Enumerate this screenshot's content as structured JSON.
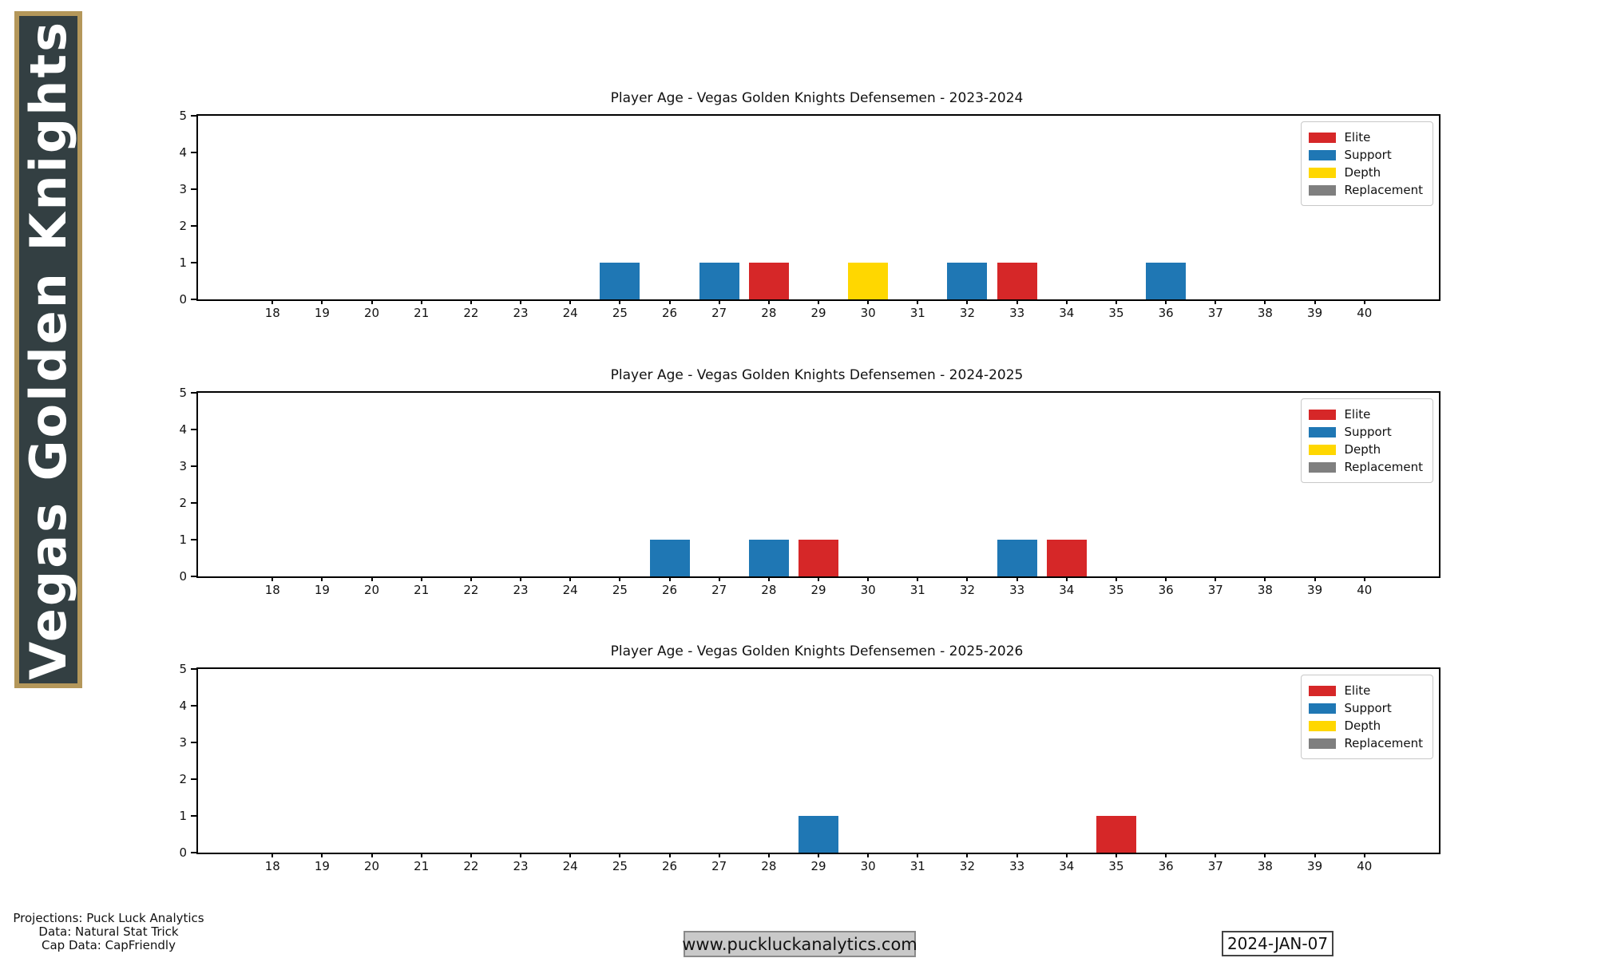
{
  "sidebar": {
    "title": "Vegas Golden Knights",
    "bg_color": "#333F42",
    "border_color": "#B4975A"
  },
  "tier_colors": {
    "Elite": "#d62728",
    "Support": "#1f77b4",
    "Depth": "#ffd700",
    "Replacement": "#7f7f7f"
  },
  "chart_data": [
    {
      "type": "bar",
      "title": "Player Age - Vegas Golden Knights Defensemen - 2023-2024",
      "xlabel": "",
      "ylabel": "",
      "xlim": [
        16.5,
        41.5
      ],
      "ylim": [
        0,
        5
      ],
      "x_ticks": [
        18,
        19,
        20,
        21,
        22,
        23,
        24,
        25,
        26,
        27,
        28,
        29,
        30,
        31,
        32,
        33,
        34,
        35,
        36,
        37,
        38,
        39,
        40
      ],
      "y_ticks": [
        0,
        1,
        2,
        3,
        4,
        5
      ],
      "grid": false,
      "legend_position": "upper right",
      "legend_entries": [
        "Elite",
        "Support",
        "Depth",
        "Replacement"
      ],
      "bars": [
        {
          "x": 25,
          "y": 1,
          "tier": "Support"
        },
        {
          "x": 27,
          "y": 1,
          "tier": "Support"
        },
        {
          "x": 28,
          "y": 1,
          "tier": "Elite"
        },
        {
          "x": 30,
          "y": 1,
          "tier": "Depth"
        },
        {
          "x": 32,
          "y": 1,
          "tier": "Support"
        },
        {
          "x": 33,
          "y": 1,
          "tier": "Elite"
        },
        {
          "x": 36,
          "y": 1,
          "tier": "Support"
        }
      ]
    },
    {
      "type": "bar",
      "title": "Player Age - Vegas Golden Knights Defensemen - 2024-2025",
      "xlabel": "",
      "ylabel": "",
      "xlim": [
        16.5,
        41.5
      ],
      "ylim": [
        0,
        5
      ],
      "x_ticks": [
        18,
        19,
        20,
        21,
        22,
        23,
        24,
        25,
        26,
        27,
        28,
        29,
        30,
        31,
        32,
        33,
        34,
        35,
        36,
        37,
        38,
        39,
        40
      ],
      "y_ticks": [
        0,
        1,
        2,
        3,
        4,
        5
      ],
      "grid": false,
      "legend_position": "upper right",
      "legend_entries": [
        "Elite",
        "Support",
        "Depth",
        "Replacement"
      ],
      "bars": [
        {
          "x": 26,
          "y": 1,
          "tier": "Support"
        },
        {
          "x": 28,
          "y": 1,
          "tier": "Support"
        },
        {
          "x": 29,
          "y": 1,
          "tier": "Elite"
        },
        {
          "x": 33,
          "y": 1,
          "tier": "Support"
        },
        {
          "x": 34,
          "y": 1,
          "tier": "Elite"
        }
      ]
    },
    {
      "type": "bar",
      "title": "Player Age - Vegas Golden Knights Defensemen - 2025-2026",
      "xlabel": "",
      "ylabel": "",
      "xlim": [
        16.5,
        41.5
      ],
      "ylim": [
        0,
        5
      ],
      "x_ticks": [
        18,
        19,
        20,
        21,
        22,
        23,
        24,
        25,
        26,
        27,
        28,
        29,
        30,
        31,
        32,
        33,
        34,
        35,
        36,
        37,
        38,
        39,
        40
      ],
      "y_ticks": [
        0,
        1,
        2,
        3,
        4,
        5
      ],
      "grid": false,
      "legend_position": "upper right",
      "legend_entries": [
        "Elite",
        "Support",
        "Depth",
        "Replacement"
      ],
      "bars": [
        {
          "x": 29,
          "y": 1,
          "tier": "Support"
        },
        {
          "x": 35,
          "y": 1,
          "tier": "Elite"
        }
      ]
    }
  ],
  "footer": {
    "credits": [
      "Projections: Puck Luck Analytics",
      "Data: Natural Stat Trick",
      "Cap Data: CapFriendly"
    ],
    "website": "www.puckluckanalytics.com",
    "date": "2024-JAN-07"
  }
}
